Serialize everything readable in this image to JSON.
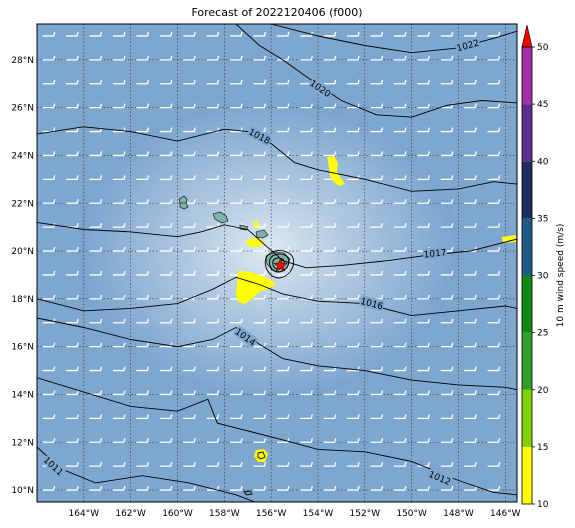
{
  "map": {
    "title": "Forecast of 2022120406 (f000)",
    "extent": {
      "lon": [
        -166,
        -145.5
      ],
      "lat": [
        9.5,
        29.5
      ]
    },
    "lon_ticks": [
      {
        "lon": -164,
        "label": "164°W"
      },
      {
        "lon": -162,
        "label": "162°W"
      },
      {
        "lon": -160,
        "label": "160°W"
      },
      {
        "lon": -158,
        "label": "158°W"
      },
      {
        "lon": -156,
        "label": "156°W"
      },
      {
        "lon": -154,
        "label": "154°W"
      },
      {
        "lon": -152,
        "label": "152°W"
      },
      {
        "lon": -150,
        "label": "150°W"
      },
      {
        "lon": -148,
        "label": "148°W"
      },
      {
        "lon": -146,
        "label": "146°W"
      }
    ],
    "lat_ticks": [
      {
        "lat": 28,
        "label": "28°N"
      },
      {
        "lat": 26,
        "label": "26°N"
      },
      {
        "lat": 24,
        "label": "24°N"
      },
      {
        "lat": 22,
        "label": "22°N"
      },
      {
        "lat": 20,
        "label": "20°N"
      },
      {
        "lat": 18,
        "label": "18°N"
      },
      {
        "lat": 16,
        "label": "16°N"
      },
      {
        "lat": 14,
        "label": "14°N"
      },
      {
        "lat": 12,
        "label": "12°N"
      },
      {
        "lat": 10,
        "label": "10°N"
      }
    ],
    "isobars": [
      {
        "label": "1022",
        "label_at": [
          -147.6,
          28.6
        ],
        "points": [
          [
            -156,
            29.5
          ],
          [
            -154,
            29.0
          ],
          [
            -152,
            28.6
          ],
          [
            -150,
            28.3
          ],
          [
            -148,
            28.5
          ],
          [
            -146.5,
            28.9
          ],
          [
            -145.5,
            29.2
          ]
        ]
      },
      {
        "label": "1020",
        "label_at": [
          -153.9,
          26.8
        ],
        "points": [
          [
            -157.5,
            29.5
          ],
          [
            -156.5,
            28.6
          ],
          [
            -155.5,
            28.0
          ],
          [
            -154.5,
            27.3
          ],
          [
            -153,
            26.3
          ],
          [
            -151.5,
            25.7
          ],
          [
            -150,
            25.6
          ],
          [
            -148.5,
            26.1
          ],
          [
            -147,
            26.3
          ],
          [
            -145.5,
            26.2
          ]
        ]
      },
      {
        "label": "1018",
        "label_at": [
          -156.5,
          24.8
        ],
        "points": [
          [
            -166,
            24.9
          ],
          [
            -164,
            25.2
          ],
          [
            -162,
            25.0
          ],
          [
            -160,
            24.6
          ],
          [
            -158,
            25.1
          ],
          [
            -157,
            25.0
          ],
          [
            -156,
            24.5
          ],
          [
            -155,
            23.7
          ],
          [
            -154,
            23.4
          ],
          [
            -152,
            23.0
          ],
          [
            -150,
            22.5
          ],
          [
            -148,
            22.6
          ],
          [
            -146.5,
            22.9
          ],
          [
            -145.5,
            22.8
          ]
        ]
      },
      {
        "label": "1017",
        "label_at": [
          -149,
          19.9
        ],
        "points": [
          [
            -166,
            21.2
          ],
          [
            -164,
            20.9
          ],
          [
            -162,
            20.8
          ],
          [
            -160,
            20.6
          ],
          [
            -159,
            20.8
          ],
          [
            -158,
            21.1
          ],
          [
            -157,
            20.9
          ],
          [
            -156.2,
            20.2
          ],
          [
            -155.5,
            19.6
          ],
          [
            -154.5,
            19.3
          ],
          [
            -153,
            19.4
          ],
          [
            -151,
            19.6
          ],
          [
            -149.5,
            19.8
          ],
          [
            -147.5,
            20.0
          ],
          [
            -145.5,
            20.5
          ]
        ]
      },
      {
        "label": "1016",
        "label_at": [
          -151.7,
          17.8
        ],
        "points": [
          [
            -166,
            18.0
          ],
          [
            -164,
            17.5
          ],
          [
            -162,
            17.6
          ],
          [
            -160,
            17.8
          ],
          [
            -158.5,
            18.4
          ],
          [
            -157.5,
            18.9
          ],
          [
            -156.5,
            18.6
          ],
          [
            -155.5,
            18.2
          ],
          [
            -154,
            17.9
          ],
          [
            -152,
            17.8
          ],
          [
            -150,
            17.3
          ],
          [
            -148,
            17.5
          ],
          [
            -146,
            17.7
          ],
          [
            -145.5,
            17.6
          ]
        ]
      },
      {
        "label": "1014",
        "label_at": [
          -157.1,
          16.4
        ],
        "points": [
          [
            -166,
            17.2
          ],
          [
            -164,
            16.8
          ],
          [
            -162,
            16.3
          ],
          [
            -160,
            16.0
          ],
          [
            -158.5,
            16.3
          ],
          [
            -157.5,
            16.8
          ],
          [
            -156.5,
            16.1
          ],
          [
            -155.5,
            15.5
          ],
          [
            -154,
            15.2
          ],
          [
            -152,
            15.0
          ],
          [
            -150,
            14.6
          ],
          [
            -148,
            14.4
          ],
          [
            -146,
            14.3
          ],
          [
            -145.5,
            14.2
          ]
        ]
      },
      {
        "label": "1012",
        "label_at": [
          -148.8,
          10.5
        ],
        "points": [
          [
            -166,
            14.7
          ],
          [
            -164,
            14.1
          ],
          [
            -162,
            13.5
          ],
          [
            -160,
            13.3
          ],
          [
            -158.7,
            13.8
          ],
          [
            -158.3,
            12.8
          ],
          [
            -157.5,
            12.6
          ],
          [
            -155.5,
            12.1
          ],
          [
            -154,
            11.7
          ],
          [
            -152,
            11.6
          ],
          [
            -150,
            11.2
          ],
          [
            -148,
            10.4
          ],
          [
            -146.5,
            9.9
          ],
          [
            -145.5,
            9.8
          ]
        ]
      },
      {
        "label": "1011",
        "label_at": [
          -165.3,
          11.0
        ],
        "points": [
          [
            -166,
            11.8
          ],
          [
            -165,
            10.9
          ],
          [
            -163.5,
            10.3
          ],
          [
            -161.5,
            10.6
          ],
          [
            -159.5,
            10.3
          ],
          [
            -157.5,
            9.8
          ],
          [
            -156.7,
            9.5
          ]
        ]
      }
    ],
    "wind_speed_fill_color": "#ffff00",
    "islands_color": "#7fb3a5",
    "ocean_color": "#7ea7cf",
    "storm_marker_color": "#ff0000",
    "storm_center": [
      -155.6,
      19.4
    ]
  },
  "colorbar": {
    "label": "10 m wind speed (m/s)",
    "min": 10,
    "max": 50,
    "ticks": [
      10,
      15,
      20,
      25,
      30,
      35,
      40,
      45,
      50
    ],
    "tick_labels": [
      "10",
      "15",
      "20",
      "25",
      "30",
      "35",
      "40",
      "45",
      "50"
    ],
    "bins": [
      {
        "from": 10,
        "to": 15,
        "color": "#ffff00"
      },
      {
        "from": 15,
        "to": 20,
        "color": "#7fd100"
      },
      {
        "from": 20,
        "to": 25,
        "color": "#2fa12a"
      },
      {
        "from": 25,
        "to": 30,
        "color": "#0f8a14"
      },
      {
        "from": 30,
        "to": 35,
        "color": "#1f5a85"
      },
      {
        "from": 35,
        "to": 40,
        "color": "#1d2f60"
      },
      {
        "from": 40,
        "to": 45,
        "color": "#5a2e8c"
      },
      {
        "from": 45,
        "to": 50,
        "color": "#a32dab"
      }
    ],
    "extend_color": "#ff0000"
  }
}
